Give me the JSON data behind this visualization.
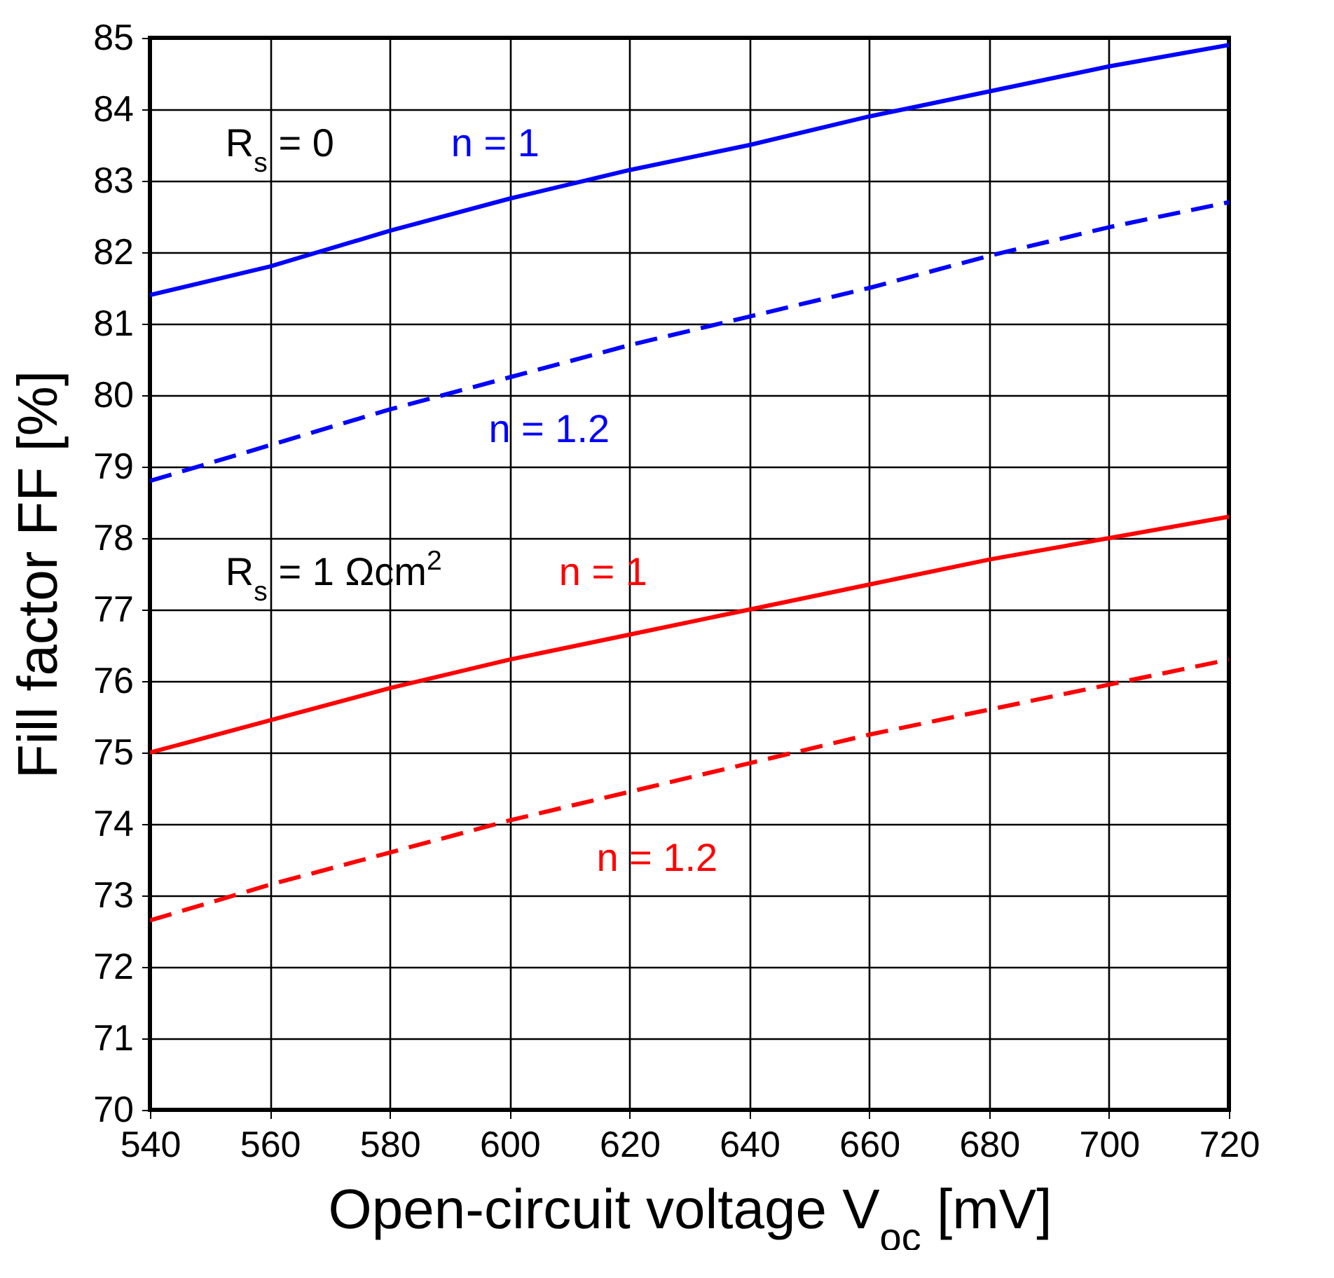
{
  "chart_data": {
    "type": "line",
    "xlabel": "Open-circuit voltage  V$_{oc}$  [mV]",
    "ylabel": "Fill factor  FF  [%]",
    "x": [
      540,
      560,
      580,
      600,
      620,
      640,
      660,
      680,
      700,
      720
    ],
    "series": [
      {
        "name": "n = 1",
        "color": "#0000ff",
        "line_style": "solid",
        "values": [
          81.4,
          81.8,
          82.3,
          82.75,
          83.15,
          83.5,
          83.9,
          84.25,
          84.6,
          84.9
        ]
      },
      {
        "name": "n = 1.2",
        "color": "#0000ff",
        "line_style": "dashed",
        "values": [
          78.8,
          79.3,
          79.8,
          80.25,
          80.7,
          81.1,
          81.5,
          81.95,
          82.35,
          82.7
        ]
      },
      {
        "name": "n = 1",
        "color": "#ff0000",
        "line_style": "solid",
        "values": [
          75.0,
          75.45,
          75.9,
          76.3,
          76.65,
          77.0,
          77.35,
          77.7,
          78.0,
          78.3
        ]
      },
      {
        "name": "n = 1.2",
        "color": "#ff0000",
        "line_style": "dashed",
        "values": [
          72.65,
          73.15,
          73.6,
          74.05,
          74.45,
          74.85,
          75.25,
          75.6,
          75.95,
          76.3
        ]
      }
    ],
    "annotations": [
      "R$_{s}$ = 0",
      "R$_{s}$ = 1 Ωcm$^{2}$"
    ],
    "xlim": [
      540,
      720
    ],
    "xticks": [
      540,
      560,
      580,
      600,
      620,
      640,
      660,
      680,
      700,
      720
    ],
    "ylim": [
      70,
      85
    ],
    "yticks": [
      70,
      71,
      72,
      73,
      74,
      75,
      76,
      77,
      78,
      79,
      80,
      81,
      82,
      83,
      84,
      85
    ],
    "grid": true
  }
}
